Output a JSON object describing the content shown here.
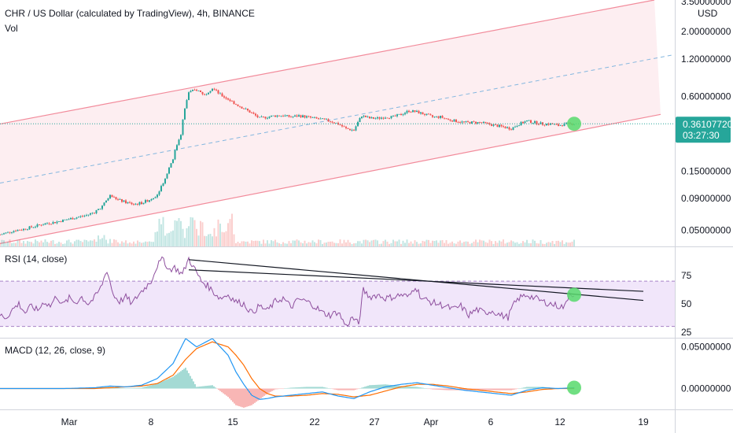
{
  "colors": {
    "up": "#26a69a",
    "down": "#ef5350",
    "channel": "#f28b9b",
    "channel_fill": "#fdeef1",
    "midline": "#84b7df",
    "price_line": "#26a69a",
    "rsi_line": "#8e4f9e",
    "rsi_band": "#f1e6fa",
    "rsi_band_border": "#a682c6",
    "macd_line": "#2196f3",
    "signal_line": "#ff6d00",
    "highlight": "#57d96c",
    "trend": "#131722"
  },
  "chart_data": [
    {
      "type": "candlestick",
      "title": "CHR / US Dollar (calculated by TradingView), 4h, BINANCE",
      "subtitle": "Vol",
      "scale": "log",
      "ylim": [
        0.037,
        3.6
      ],
      "y_ticks": [
        "3.50000000",
        "2.00000000",
        "1.20000000",
        "0.60000000",
        "0.15000000",
        "0.09000000",
        "0.05000000"
      ],
      "y_tick_values": [
        3.5,
        2.0,
        1.2,
        0.6,
        0.15,
        0.09,
        0.05
      ],
      "currency": "USD",
      "last_price": "0.36107720",
      "countdown": "03:27:30",
      "price_path": [
        [
          0,
          0.046
        ],
        [
          10,
          0.048
        ],
        [
          20,
          0.05
        ],
        [
          30,
          0.051
        ],
        [
          40,
          0.053
        ],
        [
          50,
          0.055
        ],
        [
          60,
          0.057
        ],
        [
          70,
          0.058
        ],
        [
          80,
          0.06
        ],
        [
          90,
          0.062
        ],
        [
          100,
          0.064
        ],
        [
          110,
          0.066
        ],
        [
          120,
          0.07
        ],
        [
          130,
          0.078
        ],
        [
          140,
          0.095
        ],
        [
          150,
          0.088
        ],
        [
          160,
          0.084
        ],
        [
          170,
          0.081
        ],
        [
          180,
          0.083
        ],
        [
          190,
          0.088
        ],
        [
          200,
          0.097
        ],
        [
          210,
          0.13
        ],
        [
          220,
          0.19
        ],
        [
          230,
          0.3
        ],
        [
          240,
          0.65
        ],
        [
          250,
          0.68
        ],
        [
          260,
          0.62
        ],
        [
          270,
          0.7
        ],
        [
          280,
          0.62
        ],
        [
          290,
          0.57
        ],
        [
          300,
          0.52
        ],
        [
          310,
          0.48
        ],
        [
          320,
          0.44
        ],
        [
          330,
          0.4
        ],
        [
          340,
          0.41
        ],
        [
          350,
          0.42
        ],
        [
          360,
          0.42
        ],
        [
          370,
          0.41
        ],
        [
          380,
          0.42
        ],
        [
          390,
          0.41
        ],
        [
          400,
          0.4
        ],
        [
          410,
          0.39
        ],
        [
          420,
          0.38
        ],
        [
          430,
          0.36
        ],
        [
          440,
          0.33
        ],
        [
          450,
          0.32
        ],
        [
          460,
          0.42
        ],
        [
          470,
          0.4
        ],
        [
          480,
          0.4
        ],
        [
          490,
          0.41
        ],
        [
          500,
          0.41
        ],
        [
          510,
          0.43
        ],
        [
          520,
          0.46
        ],
        [
          530,
          0.45
        ],
        [
          540,
          0.43
        ],
        [
          550,
          0.41
        ],
        [
          560,
          0.41
        ],
        [
          570,
          0.39
        ],
        [
          580,
          0.38
        ],
        [
          590,
          0.37
        ],
        [
          600,
          0.37
        ],
        [
          610,
          0.37
        ],
        [
          620,
          0.36
        ],
        [
          630,
          0.35
        ],
        [
          640,
          0.34
        ],
        [
          650,
          0.33
        ],
        [
          660,
          0.36
        ],
        [
          670,
          0.38
        ],
        [
          680,
          0.37
        ],
        [
          690,
          0.36
        ],
        [
          700,
          0.36
        ],
        [
          710,
          0.35
        ],
        [
          720,
          0.36
        ],
        [
          730,
          0.361
        ]
      ],
      "channel_upper": [
        [
          0,
          0.36
        ],
        [
          832,
          3.6
        ]
      ],
      "channel_lower": [
        [
          0,
          0.039
        ],
        [
          840,
          0.43
        ]
      ],
      "channel_mid": [
        [
          0,
          0.12
        ],
        [
          856,
          1.3
        ]
      ],
      "x_ticks": [
        "Mar",
        "8",
        "15",
        "22",
        "27",
        "Apr",
        "6",
        "12",
        "19"
      ],
      "x_tick_positions": [
        88,
        192,
        296,
        400,
        476,
        548,
        624,
        712,
        818
      ]
    },
    {
      "type": "line",
      "title": "RSI (14, close)",
      "ylim": [
        20,
        100
      ],
      "y_ticks": [
        "75",
        "50",
        "25"
      ],
      "y_tick_values": [
        75,
        50,
        25
      ],
      "band": [
        30,
        70
      ],
      "values": [
        [
          0,
          40
        ],
        [
          8,
          38
        ],
        [
          16,
          45
        ],
        [
          24,
          50
        ],
        [
          32,
          42
        ],
        [
          40,
          48
        ],
        [
          48,
          44
        ],
        [
          56,
          52
        ],
        [
          64,
          48
        ],
        [
          72,
          57
        ],
        [
          80,
          49
        ],
        [
          88,
          55
        ],
        [
          96,
          51
        ],
        [
          104,
          56
        ],
        [
          112,
          50
        ],
        [
          120,
          55
        ],
        [
          128,
          64
        ],
        [
          136,
          80
        ],
        [
          144,
          58
        ],
        [
          152,
          52
        ],
        [
          160,
          56
        ],
        [
          168,
          50
        ],
        [
          176,
          58
        ],
        [
          184,
          64
        ],
        [
          192,
          70
        ],
        [
          200,
          84
        ],
        [
          208,
          90
        ],
        [
          214,
          80
        ],
        [
          222,
          82
        ],
        [
          232,
          76
        ],
        [
          240,
          90
        ],
        [
          248,
          80
        ],
        [
          256,
          70
        ],
        [
          264,
          66
        ],
        [
          272,
          60
        ],
        [
          280,
          55
        ],
        [
          290,
          58
        ],
        [
          300,
          52
        ],
        [
          310,
          50
        ],
        [
          320,
          42
        ],
        [
          330,
          48
        ],
        [
          340,
          44
        ],
        [
          350,
          52
        ],
        [
          360,
          55
        ],
        [
          370,
          47
        ],
        [
          380,
          54
        ],
        [
          390,
          52
        ],
        [
          400,
          48
        ],
        [
          410,
          42
        ],
        [
          420,
          40
        ],
        [
          430,
          43
        ],
        [
          440,
          30
        ],
        [
          448,
          38
        ],
        [
          456,
          32
        ],
        [
          462,
          62
        ],
        [
          470,
          56
        ],
        [
          480,
          58
        ],
        [
          490,
          55
        ],
        [
          500,
          56
        ],
        [
          510,
          58
        ],
        [
          520,
          56
        ],
        [
          528,
          66
        ],
        [
          536,
          55
        ],
        [
          546,
          52
        ],
        [
          556,
          50
        ],
        [
          566,
          48
        ],
        [
          576,
          45
        ],
        [
          586,
          48
        ],
        [
          596,
          40
        ],
        [
          606,
          45
        ],
        [
          616,
          42
        ],
        [
          626,
          44
        ],
        [
          636,
          40
        ],
        [
          646,
          38
        ],
        [
          652,
          48
        ],
        [
          660,
          55
        ],
        [
          670,
          58
        ],
        [
          680,
          55
        ],
        [
          690,
          52
        ],
        [
          700,
          50
        ],
        [
          710,
          48
        ],
        [
          718,
          47
        ],
        [
          724,
          60
        ],
        [
          730,
          58
        ]
      ],
      "trendlines": [
        [
          [
            240,
            89
          ],
          [
            818,
            53
          ]
        ],
        [
          [
            240,
            80
          ],
          [
            818,
            61
          ]
        ]
      ]
    },
    {
      "type": "line",
      "title": "MACD (12, 26, close, 9)",
      "ylim": [
        -0.025,
        0.06
      ],
      "y_ticks": [
        "0.05000000",
        "0.00000000"
      ],
      "y_tick_values": [
        0.05,
        0.0
      ],
      "macd": [
        [
          0,
          0.0
        ],
        [
          40,
          0.0
        ],
        [
          80,
          0.0
        ],
        [
          120,
          0.001
        ],
        [
          140,
          0.003
        ],
        [
          160,
          0.002
        ],
        [
          180,
          0.004
        ],
        [
          200,
          0.012
        ],
        [
          220,
          0.03
        ],
        [
          236,
          0.06
        ],
        [
          250,
          0.05
        ],
        [
          270,
          0.06
        ],
        [
          290,
          0.04
        ],
        [
          300,
          0.02
        ],
        [
          310,
          0.005
        ],
        [
          320,
          -0.008
        ],
        [
          330,
          -0.013
        ],
        [
          340,
          -0.012
        ],
        [
          350,
          -0.01
        ],
        [
          370,
          -0.008
        ],
        [
          390,
          -0.006
        ],
        [
          410,
          -0.004
        ],
        [
          430,
          -0.009
        ],
        [
          450,
          -0.012
        ],
        [
          470,
          -0.004
        ],
        [
          490,
          0.002
        ],
        [
          510,
          0.005
        ],
        [
          530,
          0.007
        ],
        [
          550,
          0.004
        ],
        [
          570,
          0.001
        ],
        [
          590,
          -0.002
        ],
        [
          610,
          -0.004
        ],
        [
          630,
          -0.006
        ],
        [
          650,
          -0.008
        ],
        [
          670,
          -0.002
        ],
        [
          690,
          0.001
        ],
        [
          710,
          0.0
        ],
        [
          730,
          0.001
        ]
      ],
      "signal": [
        [
          0,
          0.0
        ],
        [
          40,
          0.0
        ],
        [
          80,
          0.0
        ],
        [
          120,
          0.0
        ],
        [
          140,
          0.001
        ],
        [
          160,
          0.002
        ],
        [
          180,
          0.003
        ],
        [
          200,
          0.006
        ],
        [
          220,
          0.016
        ],
        [
          236,
          0.035
        ],
        [
          250,
          0.048
        ],
        [
          270,
          0.056
        ],
        [
          290,
          0.05
        ],
        [
          300,
          0.04
        ],
        [
          310,
          0.028
        ],
        [
          320,
          0.012
        ],
        [
          330,
          0.0
        ],
        [
          340,
          -0.006
        ],
        [
          350,
          -0.009
        ],
        [
          370,
          -0.009
        ],
        [
          390,
          -0.008
        ],
        [
          410,
          -0.006
        ],
        [
          430,
          -0.007
        ],
        [
          450,
          -0.01
        ],
        [
          470,
          -0.008
        ],
        [
          490,
          -0.003
        ],
        [
          510,
          0.002
        ],
        [
          530,
          0.005
        ],
        [
          550,
          0.005
        ],
        [
          570,
          0.003
        ],
        [
          590,
          0.0
        ],
        [
          610,
          -0.002
        ],
        [
          630,
          -0.004
        ],
        [
          650,
          -0.006
        ],
        [
          670,
          -0.004
        ],
        [
          690,
          -0.001
        ],
        [
          710,
          0.0
        ],
        [
          730,
          0.0
        ]
      ]
    }
  ]
}
